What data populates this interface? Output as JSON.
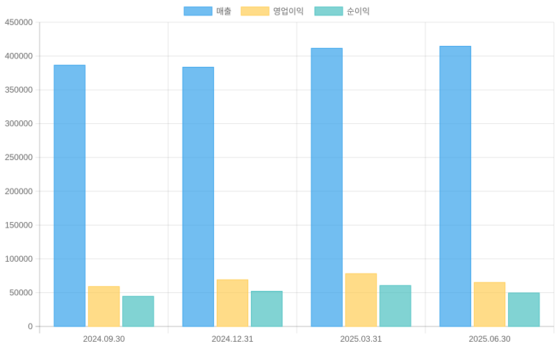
{
  "chart_data": {
    "type": "bar",
    "categories": [
      "2024.09.30",
      "2024.12.31",
      "2025.03.31",
      "2025.06.30"
    ],
    "series": [
      {
        "name": "매출",
        "values": [
          386500,
          383500,
          411500,
          414500
        ],
        "color": "#36A2EB"
      },
      {
        "name": "영업이익",
        "values": [
          59000,
          69000,
          78000,
          65000
        ],
        "color": "#FFCD56"
      },
      {
        "name": "순이익",
        "values": [
          44500,
          52000,
          60500,
          49500
        ],
        "color": "#4BC0C0"
      }
    ],
    "ylim": [
      0,
      450000
    ],
    "yticks": [
      0,
      50000,
      100000,
      150000,
      200000,
      250000,
      300000,
      350000,
      400000,
      450000
    ],
    "legend_position": "top",
    "grid": true
  }
}
